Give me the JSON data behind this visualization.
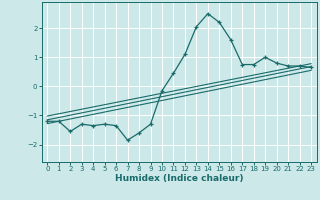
{
  "title": "",
  "xlabel": "Humidex (Indice chaleur)",
  "ylabel": "",
  "bg_color": "#cce8e8",
  "grid_color": "#ffffff",
  "line_color": "#1a6b6b",
  "xlim": [
    -0.5,
    23.5
  ],
  "ylim": [
    -2.6,
    2.9
  ],
  "xticks": [
    0,
    1,
    2,
    3,
    4,
    5,
    6,
    7,
    8,
    9,
    10,
    11,
    12,
    13,
    14,
    15,
    16,
    17,
    18,
    19,
    20,
    21,
    22,
    23
  ],
  "yticks": [
    -2,
    -1,
    0,
    1,
    2
  ],
  "curve_x": [
    0,
    1,
    2,
    3,
    4,
    5,
    6,
    7,
    8,
    9,
    10,
    11,
    12,
    13,
    14,
    15,
    16,
    17,
    18,
    19,
    20,
    21,
    22,
    23
  ],
  "curve_y": [
    -1.2,
    -1.2,
    -1.55,
    -1.3,
    -1.35,
    -1.3,
    -1.35,
    -1.85,
    -1.6,
    -1.3,
    -0.15,
    0.45,
    1.1,
    2.05,
    2.5,
    2.2,
    1.6,
    0.75,
    0.75,
    1.0,
    0.8,
    0.7,
    0.7,
    0.65
  ],
  "line1_x": [
    0,
    23
  ],
  "line1_y": [
    -1.15,
    0.68
  ],
  "line2_x": [
    0,
    23
  ],
  "line2_y": [
    -1.28,
    0.55
  ],
  "line3_x": [
    0,
    23
  ],
  "line3_y": [
    -1.02,
    0.78
  ]
}
